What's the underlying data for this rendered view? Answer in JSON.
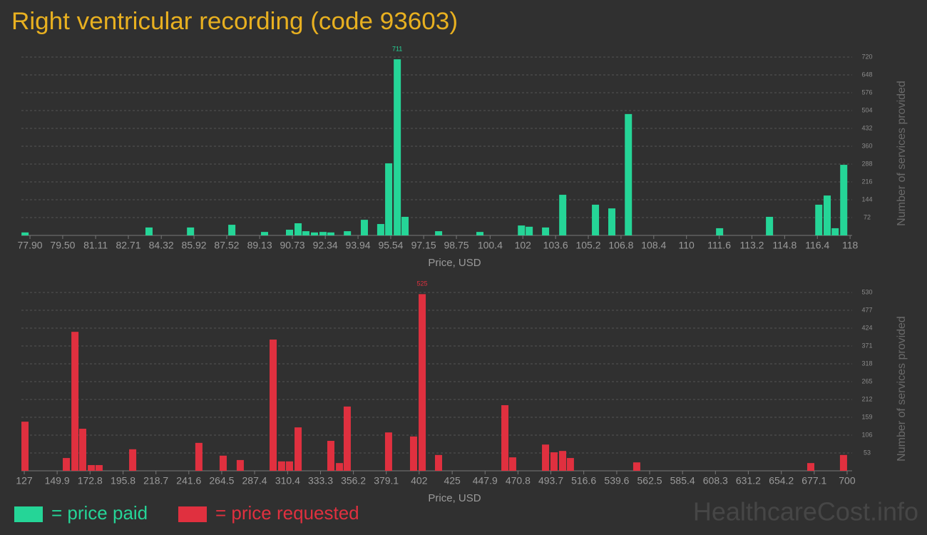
{
  "title": "Right ventricular recording (code 93603)",
  "watermark": "HealthcareCost.info",
  "chart_data": [
    {
      "type": "bar",
      "x_label": "Price, USD",
      "y_label": "Number of services provided",
      "grid": true,
      "x": [
        77.66,
        83.72,
        85.75,
        87.77,
        89.37,
        90.59,
        91.01,
        91.39,
        91.81,
        92.23,
        92.61,
        93.42,
        94.25,
        95.05,
        95.44,
        95.86,
        96.24,
        97.88,
        99.9,
        101.93,
        102.31,
        103.11,
        103.95,
        105.55,
        106.35,
        107.16,
        111.62,
        114.06,
        116.47,
        116.88,
        117.27,
        117.69
      ],
      "series": [
        {
          "name": "= price paid",
          "color": "#25d597",
          "values": [
            12,
            32,
            32,
            43,
            14,
            23,
            49,
            17,
            12,
            14,
            12,
            17,
            63,
            46,
            291,
            711,
            75,
            17,
            14,
            40,
            35,
            32,
            164,
            124,
            109,
            490,
            29,
            75,
            124,
            161,
            29,
            285
          ]
        }
      ],
      "xlim": [
        77.48,
        118.1
      ],
      "xticks": [
        {
          "value": 77.9,
          "label": "77.90"
        },
        {
          "value": 79.5,
          "label": "79.50"
        },
        81.11,
        82.71,
        84.32,
        85.92,
        87.52,
        89.13,
        90.73,
        92.34,
        93.94,
        95.54,
        97.15,
        98.75,
        100.4,
        102,
        103.6,
        105.2,
        106.8,
        108.4,
        110,
        111.6,
        113.2,
        114.8,
        116.4,
        118
      ],
      "ylim": [
        0,
        720
      ],
      "yticks": [
        72,
        144,
        216,
        288,
        360,
        432,
        504,
        576,
        648,
        720
      ]
    },
    {
      "type": "bar",
      "x_label": "Price, USD",
      "y_label": "Number of services provided",
      "grid": true,
      "x": [
        127.5,
        156.3,
        162.3,
        167.7,
        173.7,
        179.1,
        202.5,
        248.6,
        265.5,
        277.4,
        300.3,
        306.2,
        311.7,
        317.7,
        340.5,
        346.5,
        351.9,
        380.7,
        398.1,
        404.1,
        415.5,
        461.7,
        467.1,
        490.0,
        495.9,
        501.9,
        507.3,
        553.5,
        674.7,
        697.5
      ],
      "series": [
        {
          "name": "= price requested",
          "color": "#e0303f",
          "values": [
            146,
            38,
            413,
            125,
            17,
            17,
            64,
            83,
            45,
            32,
            390,
            28,
            28,
            129,
            89,
            23,
            191,
            114,
            102,
            525,
            47,
            195,
            40,
            78,
            55,
            59,
            38,
            25,
            23,
            47
          ]
        }
      ],
      "xlim": [
        125.0,
        703.5
      ],
      "xticks": [
        127,
        149.9,
        172.8,
        195.8,
        218.7,
        241.6,
        264.5,
        287.4,
        310.4,
        333.3,
        356.2,
        379.1,
        402,
        425,
        447.9,
        470.8,
        493.7,
        516.6,
        539.6,
        562.5,
        585.4,
        608.3,
        631.2,
        654.2,
        677.1,
        700
      ],
      "ylim": [
        0,
        530
      ],
      "yticks": [
        53,
        106,
        159,
        212,
        265,
        318,
        371,
        424,
        477,
        530
      ]
    }
  ]
}
